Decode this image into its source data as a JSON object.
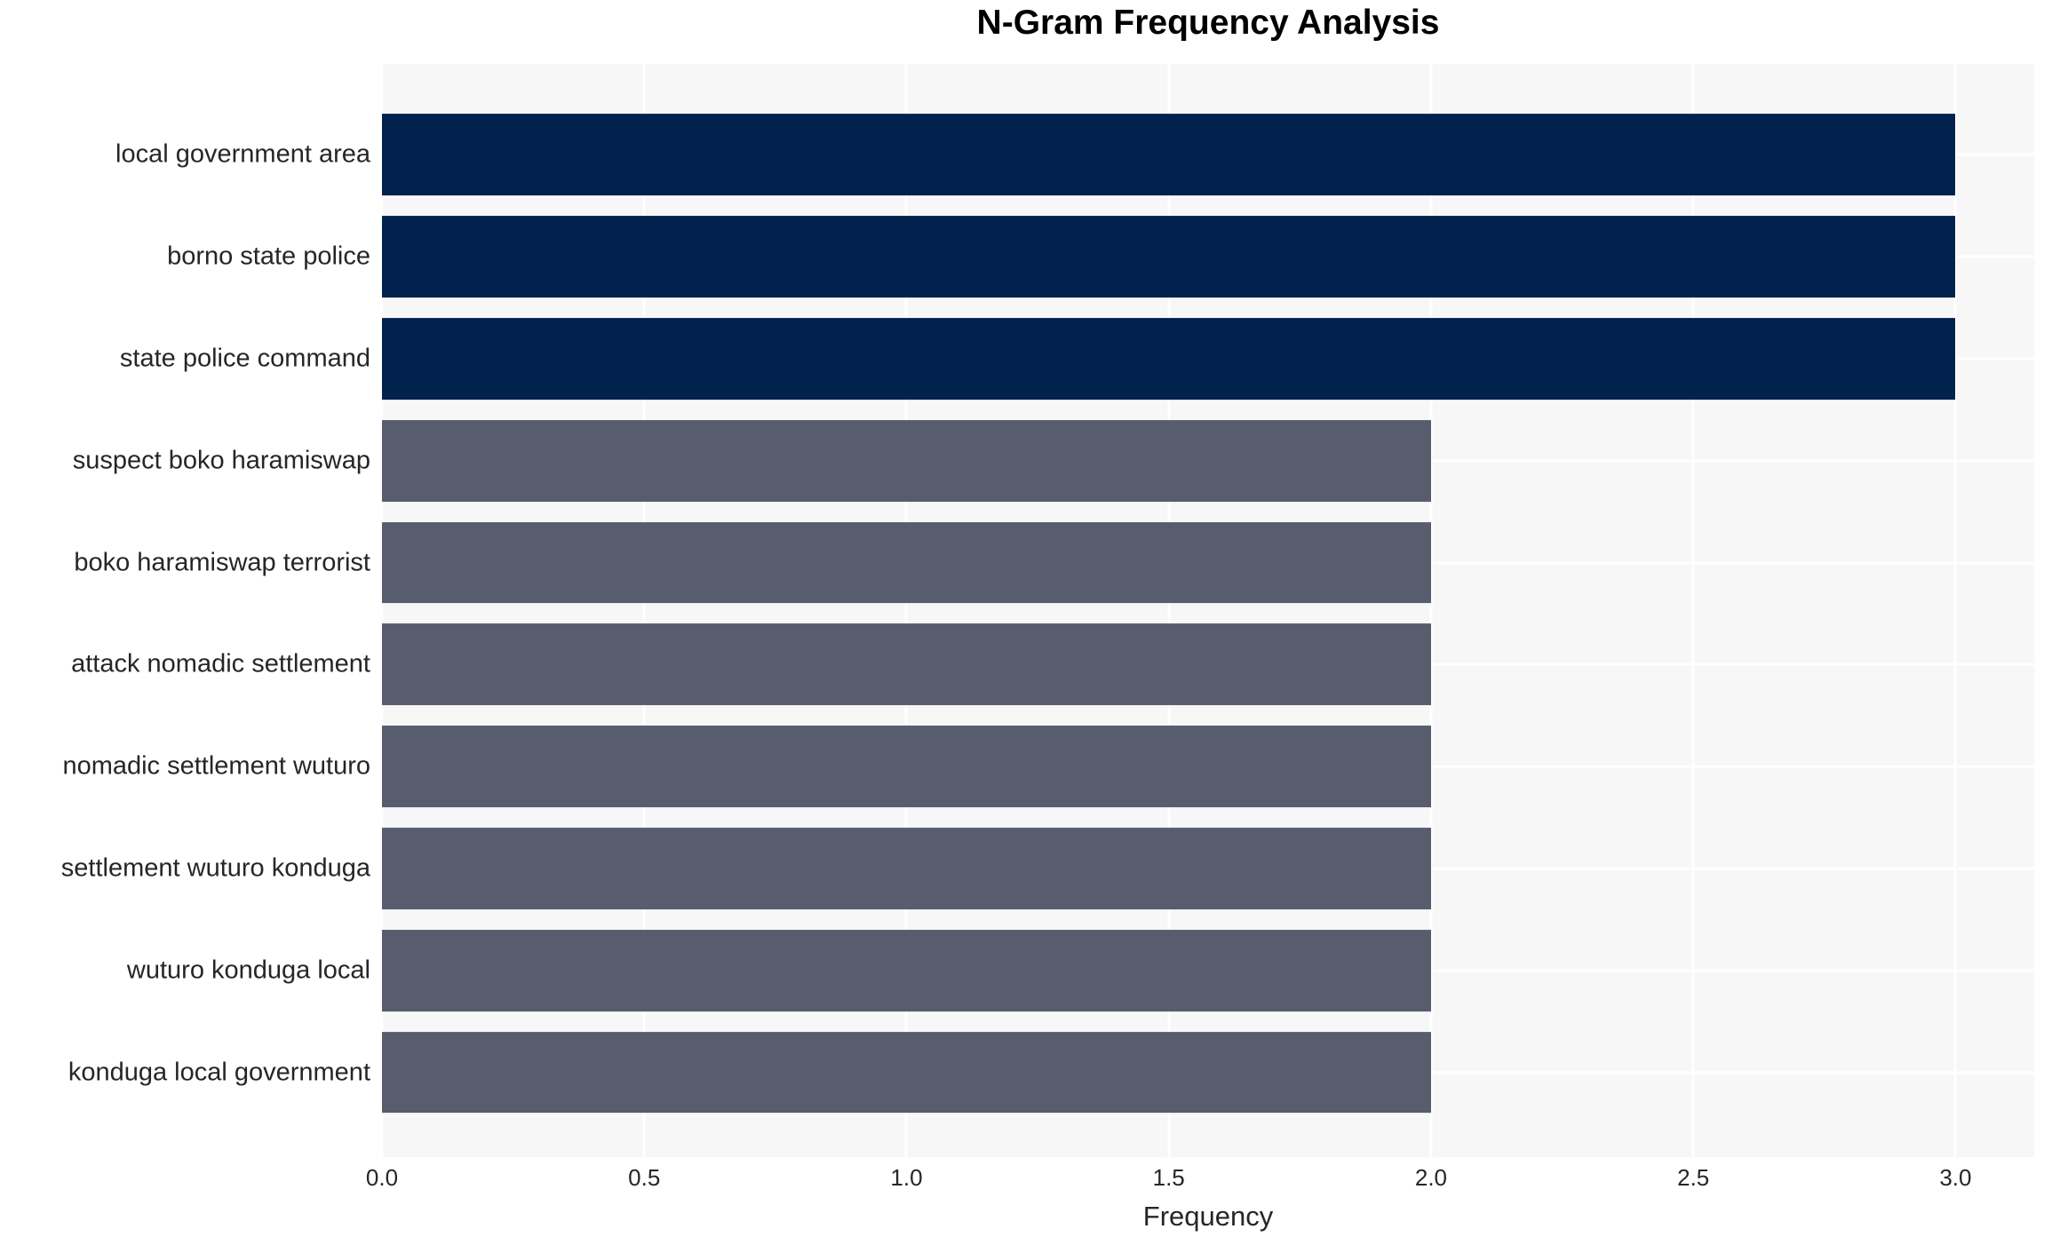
{
  "chart_data": {
    "type": "bar",
    "orientation": "horizontal",
    "title": "N-Gram Frequency Analysis",
    "xlabel": "Frequency",
    "ylabel": "",
    "categories": [
      "local government area",
      "borno state police",
      "state police command",
      "suspect boko haramiswap",
      "boko haramiswap terrorist",
      "attack nomadic settlement",
      "nomadic settlement wuturo",
      "settlement wuturo konduga",
      "wuturo konduga local",
      "konduga local government"
    ],
    "values": [
      3,
      3,
      3,
      2,
      2,
      2,
      2,
      2,
      2,
      2
    ],
    "xlim": [
      0,
      3.15
    ],
    "xticks": [
      0.0,
      0.5,
      1.0,
      1.5,
      2.0,
      2.5,
      3.0
    ],
    "xtick_labels": [
      "0.0",
      "0.5",
      "1.0",
      "1.5",
      "2.0",
      "2.5",
      "3.0"
    ],
    "grid": {
      "vertical": true,
      "horizontal": true
    },
    "legend": "none",
    "colors": {
      "bar_by_value": {
        "3": "#02224e",
        "2": "#575d6c"
      },
      "grid_line": "#ffffff",
      "plot_background": "#f7f7f8",
      "figure_background": "#ffffff",
      "text": "#262626",
      "title_text": "#000000"
    }
  }
}
